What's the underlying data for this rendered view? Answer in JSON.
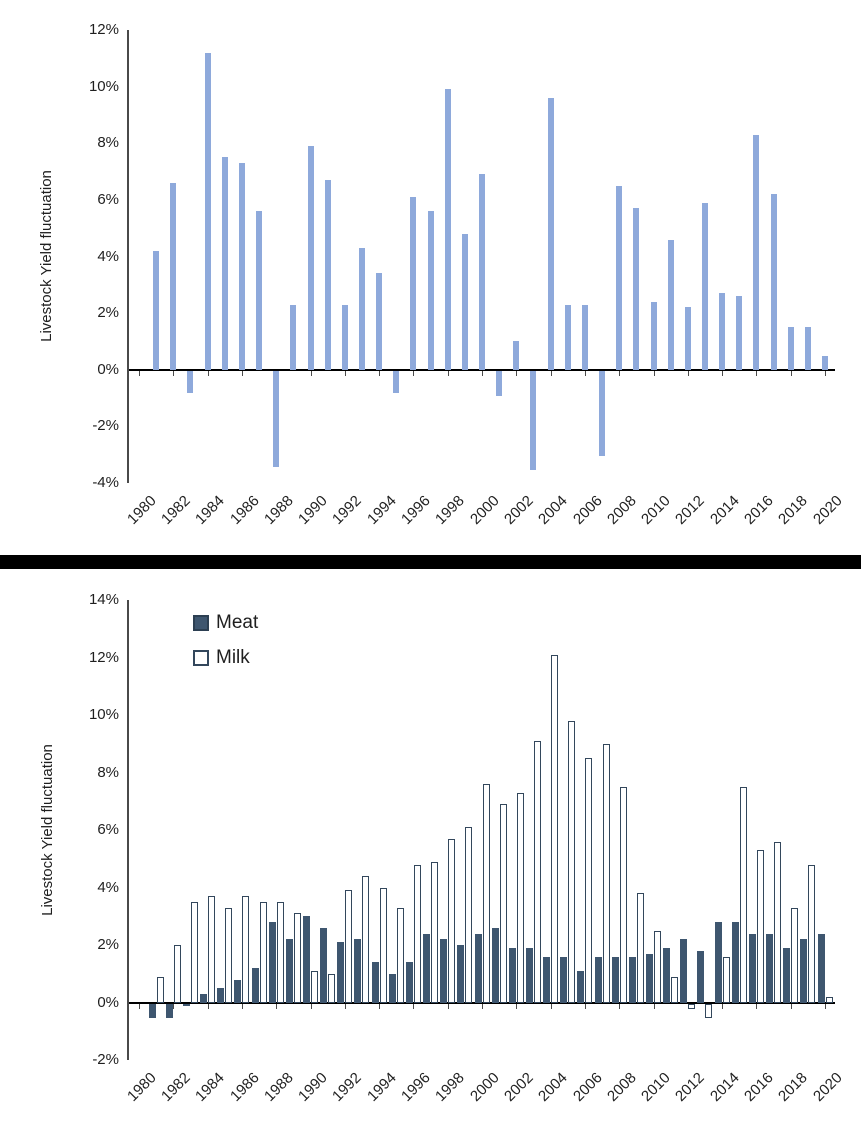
{
  "figure": {
    "divider_color": "#000000",
    "background": "#ffffff"
  },
  "chart_data": [
    {
      "type": "bar",
      "title": "",
      "xlabel": "",
      "ylabel": "Livestock Yield fluctuation",
      "ylim": [
        -4,
        12
      ],
      "grid": false,
      "legend": null,
      "bar_color": "#8EA9DB",
      "y_tick_labels": [
        "12%",
        "10%",
        "8%",
        "6%",
        "4%",
        "2%",
        "0%",
        "-2%",
        "-4%"
      ],
      "x_tick_labels": [
        "1980",
        "1982",
        "1984",
        "1986",
        "1988",
        "1990",
        "1992",
        "1994",
        "1996",
        "1998",
        "2000",
        "2002",
        "2004",
        "2006",
        "2008",
        "2010",
        "2012",
        "2014",
        "2016",
        "2018",
        "2020"
      ],
      "x_axis_range": [
        1980,
        2020
      ],
      "x": [
        1981,
        1982,
        1983,
        1984,
        1985,
        1986,
        1987,
        1988,
        1989,
        1990,
        1991,
        1992,
        1993,
        1994,
        1995,
        1996,
        1997,
        1998,
        1999,
        2000,
        2001,
        2002,
        2003,
        2004,
        2005,
        2006,
        2007,
        2008,
        2009,
        2010,
        2011,
        2012,
        2013,
        2014,
        2015,
        2016,
        2017,
        2018,
        2019,
        2020
      ],
      "values": [
        4.2,
        6.6,
        -0.8,
        11.2,
        7.5,
        7.3,
        5.6,
        -3.4,
        2.3,
        7.9,
        6.7,
        2.3,
        4.3,
        3.4,
        -0.8,
        6.1,
        5.6,
        9.9,
        4.8,
        6.9,
        -0.9,
        1.0,
        -3.5,
        9.6,
        2.3,
        2.3,
        -3.0,
        6.5,
        5.7,
        2.4,
        4.6,
        2.2,
        5.9,
        2.7,
        2.6,
        8.3,
        6.2,
        1.5,
        1.5,
        0.5
      ]
    },
    {
      "type": "bar",
      "title": "",
      "xlabel": "",
      "ylabel": "Livestock Yield fluctuation",
      "ylim": [
        -2,
        14
      ],
      "grid": false,
      "legend_position": "top-left",
      "y_tick_labels": [
        "14%",
        "12%",
        "10%",
        "8%",
        "6%",
        "4%",
        "2%",
        "0%",
        "-2%"
      ],
      "x_tick_labels": [
        "1980",
        "1982",
        "1984",
        "1986",
        "1988",
        "1990",
        "1992",
        "1994",
        "1996",
        "1998",
        "2000",
        "2002",
        "2004",
        "2006",
        "2008",
        "2010",
        "2012",
        "2014",
        "2016",
        "2018",
        "2020"
      ],
      "x_axis_range": [
        1980,
        2020
      ],
      "x": [
        1981,
        1982,
        1983,
        1984,
        1985,
        1986,
        1987,
        1988,
        1989,
        1990,
        1991,
        1992,
        1993,
        1994,
        1995,
        1996,
        1997,
        1998,
        1999,
        2000,
        2001,
        2002,
        2003,
        2004,
        2005,
        2006,
        2007,
        2008,
        2009,
        2010,
        2011,
        2012,
        2013,
        2014,
        2015,
        2016,
        2017,
        2018,
        2019,
        2020
      ],
      "series": [
        {
          "name": "Meat",
          "fill": "#3E566F",
          "border": "#2C3F52",
          "values": [
            -0.5,
            -0.5,
            -0.1,
            0.3,
            0.5,
            0.8,
            1.2,
            2.8,
            2.2,
            3.0,
            2.6,
            2.1,
            2.2,
            1.4,
            1.0,
            1.4,
            2.4,
            2.2,
            2.0,
            2.4,
            2.6,
            1.9,
            1.9,
            1.6,
            1.6,
            1.1,
            1.6,
            1.6,
            1.6,
            1.7,
            1.9,
            2.2,
            1.8,
            2.8,
            2.8,
            2.4,
            2.4,
            1.9,
            2.2,
            2.4
          ]
        },
        {
          "name": "Milk",
          "fill": "#FFFFFF",
          "border": "#33475C",
          "values": [
            0.9,
            2.0,
            3.5,
            3.7,
            3.3,
            3.7,
            3.5,
            3.5,
            3.1,
            1.1,
            1.0,
            3.9,
            4.4,
            4.0,
            3.3,
            4.8,
            4.9,
            5.7,
            6.1,
            7.6,
            6.9,
            7.3,
            9.1,
            12.1,
            9.8,
            8.5,
            9.0,
            7.5,
            3.8,
            2.5,
            0.9,
            -0.2,
            -0.5,
            1.6,
            7.5,
            5.3,
            5.6,
            3.3,
            4.8,
            0.2
          ]
        }
      ]
    }
  ]
}
